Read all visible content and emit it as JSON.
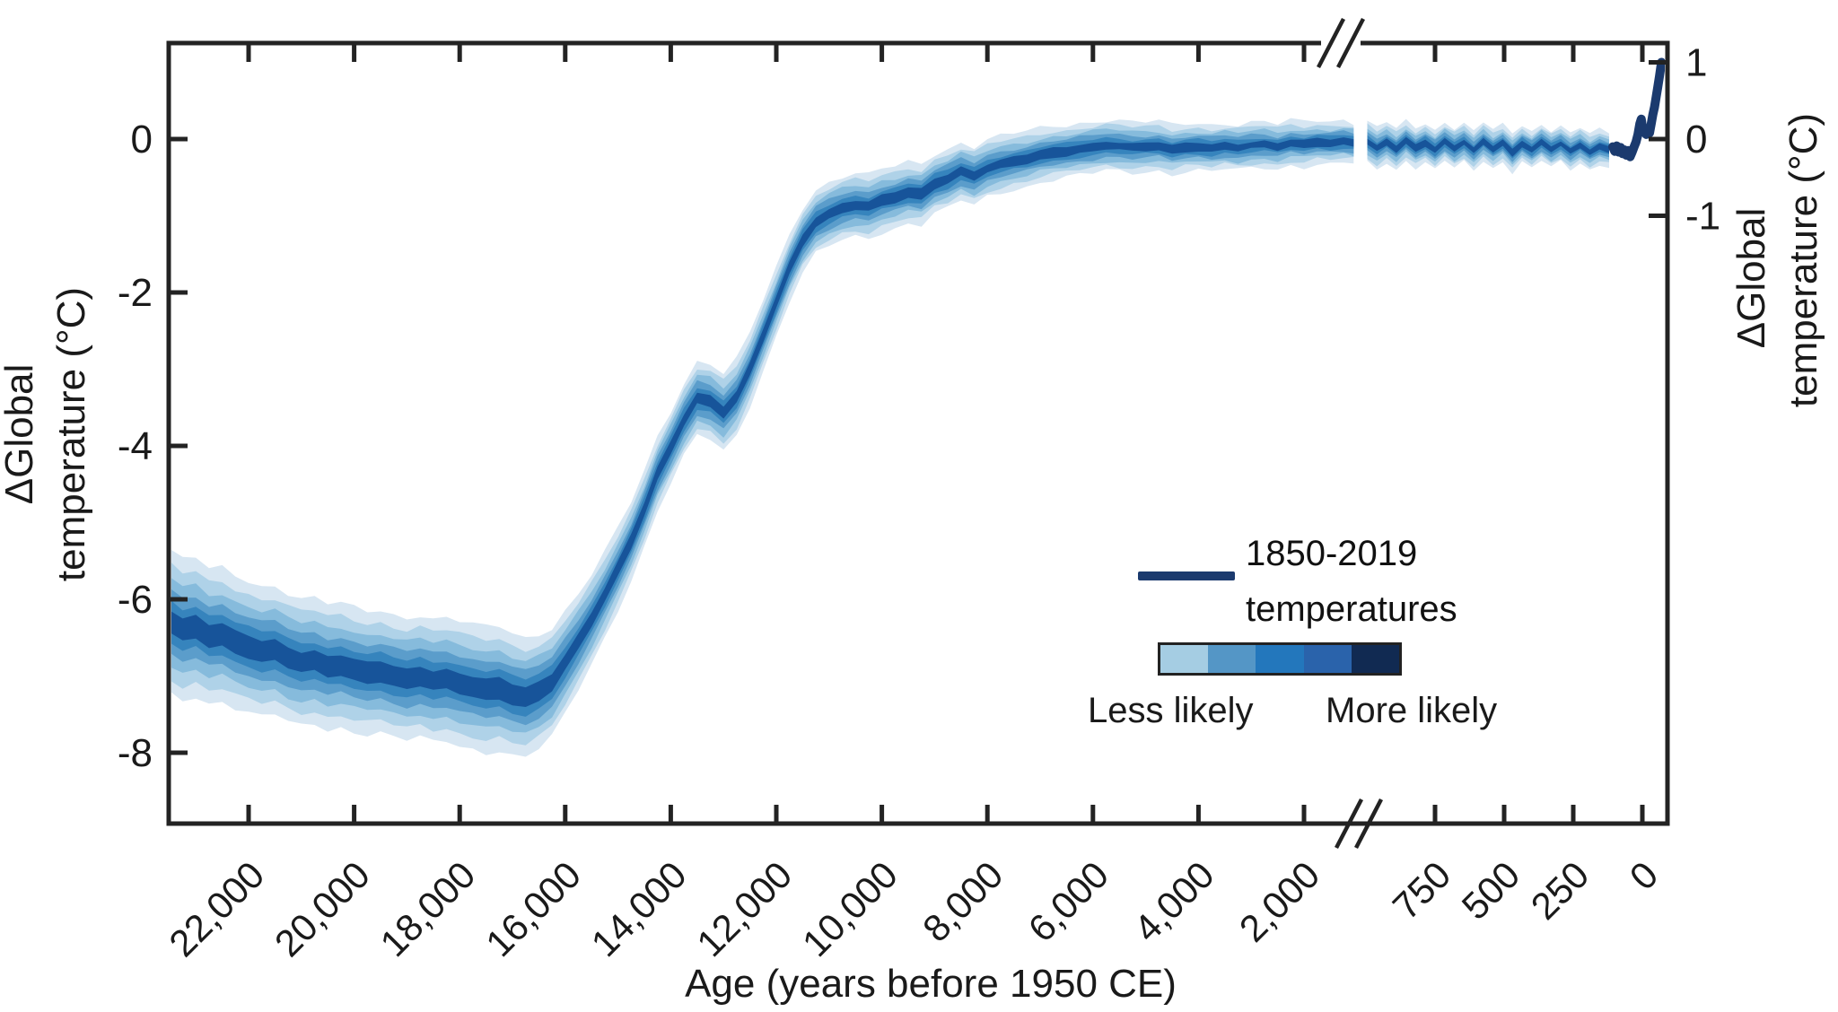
{
  "axes": {
    "x_title": "Age (years before 1950 CE)",
    "y_left_line1": "ΔGlobal",
    "y_left_line2": "temperature (°C)",
    "y_right_line1": "ΔGlobal",
    "y_right_line2": "temperature (°C)",
    "x_ticks_main": [
      {
        "label": "22,000",
        "age": 22000
      },
      {
        "label": "20,000",
        "age": 20000
      },
      {
        "label": "18,000",
        "age": 18000
      },
      {
        "label": "16,000",
        "age": 16000
      },
      {
        "label": "14,000",
        "age": 14000
      },
      {
        "label": "12,000",
        "age": 12000
      },
      {
        "label": "10,000",
        "age": 10000
      },
      {
        "label": "8,000",
        "age": 8000
      },
      {
        "label": "6,000",
        "age": 6000
      },
      {
        "label": "4,000",
        "age": 4000
      },
      {
        "label": "2,000",
        "age": 2000
      }
    ],
    "x_ticks_recent": [
      {
        "label": "750",
        "age": 750
      },
      {
        "label": "500",
        "age": 500
      },
      {
        "label": "250",
        "age": 250
      },
      {
        "label": "0",
        "age": 0
      }
    ],
    "y_ticks_left": [
      {
        "label": "0",
        "value": 0
      },
      {
        "label": "-2",
        "value": -2
      },
      {
        "label": "-4",
        "value": -4
      },
      {
        "label": "-6",
        "value": -6
      },
      {
        "label": "-8",
        "value": -8
      }
    ],
    "y_ticks_right": [
      {
        "label": "1",
        "value": 1
      },
      {
        "label": "0",
        "value": 0
      },
      {
        "label": "-1",
        "value": -1
      }
    ]
  },
  "legend": {
    "line_label_line1": "1850-2019",
    "line_label_line2": "temperatures",
    "line_color": "#1b3a6e",
    "colorbar_colors": [
      "#a5cde3",
      "#5496c6",
      "#2377bc",
      "#2a63ab",
      "#112a52"
    ],
    "less_label": "Less likely",
    "more_label": "More likely"
  },
  "colors": {
    "axis": "#232323",
    "instrumental": "#1b3a6e",
    "band_levels": [
      "#d7e6f2",
      "#afd2e8",
      "#86bbdc",
      "#5b9dcb",
      "#3684bd",
      "#17549a"
    ]
  },
  "chart_data": {
    "type": "area",
    "title": "",
    "xlabel": "Age (years before 1950 CE)",
    "ylabel_left": "ΔGlobal temperature (°C)",
    "ylabel_right": "ΔGlobal temperature (°C)",
    "ylim": [
      -8.95,
      1.25
    ],
    "x_axis_break_years_bp": [
      1450,
      1000
    ],
    "x_range_main_bp": [
      23500,
      1060
    ],
    "x_range_recent_bp": [
      995,
      -69
    ],
    "grid": false,
    "legend_entries": [
      "1850-2019 temperatures",
      "Less likely",
      "More likely"
    ],
    "band_fractions": [
      1.0,
      0.8,
      0.615,
      0.45,
      0.3,
      0.165
    ],
    "glacial_band": {
      "age_bp": [
        23500,
        23250,
        23000,
        22750,
        22500,
        22250,
        22000,
        21750,
        21500,
        21250,
        21000,
        20750,
        20500,
        20250,
        20000,
        19750,
        19500,
        19250,
        19000,
        18750,
        18500,
        18250,
        18000,
        17750,
        17500,
        17250,
        17000,
        16750,
        16500,
        16250,
        16000,
        15750,
        15500,
        15250,
        15000,
        14750,
        14500,
        14250,
        14000,
        13750,
        13500,
        13250,
        13000,
        12750,
        12500,
        12250,
        12000,
        11750,
        11500,
        11250,
        11000,
        10750,
        10500,
        10250,
        10000,
        9750,
        9500,
        9250,
        9000,
        8750,
        8500,
        8250,
        8000,
        7750,
        7500,
        7250,
        7000,
        6750,
        6500,
        6250,
        6000,
        5750,
        5500,
        5250,
        5000,
        4750,
        4500,
        4250,
        4000,
        3750,
        3500,
        3250,
        3000,
        2750,
        2500,
        2250,
        2000,
        1750,
        1500,
        1250,
        1060
      ],
      "median": [
        -6.28,
        -6.4,
        -6.36,
        -6.48,
        -6.46,
        -6.56,
        -6.62,
        -6.68,
        -6.66,
        -6.76,
        -6.82,
        -6.8,
        -6.88,
        -6.86,
        -6.92,
        -6.96,
        -6.94,
        -7.0,
        -7.04,
        -7.0,
        -7.06,
        -7.04,
        -7.1,
        -7.14,
        -7.18,
        -7.16,
        -7.24,
        -7.28,
        -7.2,
        -7.08,
        -6.82,
        -6.55,
        -6.26,
        -5.94,
        -5.6,
        -5.24,
        -4.82,
        -4.36,
        -4.02,
        -3.66,
        -3.38,
        -3.42,
        -3.56,
        -3.36,
        -3.0,
        -2.56,
        -2.12,
        -1.68,
        -1.32,
        -1.08,
        -0.98,
        -0.9,
        -0.86,
        -0.88,
        -0.8,
        -0.76,
        -0.7,
        -0.72,
        -0.58,
        -0.52,
        -0.42,
        -0.48,
        -0.38,
        -0.33,
        -0.29,
        -0.26,
        -0.21,
        -0.18,
        -0.16,
        -0.13,
        -0.11,
        -0.08,
        -0.09,
        -0.11,
        -0.1,
        -0.09,
        -0.14,
        -0.11,
        -0.1,
        -0.12,
        -0.09,
        -0.11,
        -0.08,
        -0.07,
        -0.1,
        -0.05,
        -0.07,
        -0.04,
        -0.05,
        -0.03,
        -0.05
      ],
      "half_width": [
        0.94,
        0.92,
        0.9,
        0.88,
        0.87,
        0.86,
        0.86,
        0.85,
        0.84,
        0.84,
        0.83,
        0.82,
        0.82,
        0.81,
        0.81,
        0.8,
        0.8,
        0.8,
        0.8,
        0.8,
        0.8,
        0.8,
        0.81,
        0.81,
        0.82,
        0.81,
        0.8,
        0.78,
        0.75,
        0.71,
        0.67,
        0.62,
        0.58,
        0.55,
        0.53,
        0.51,
        0.5,
        0.49,
        0.48,
        0.48,
        0.48,
        0.49,
        0.5,
        0.49,
        0.47,
        0.46,
        0.45,
        0.44,
        0.43,
        0.42,
        0.42,
        0.41,
        0.41,
        0.41,
        0.41,
        0.4,
        0.4,
        0.4,
        0.39,
        0.39,
        0.38,
        0.38,
        0.37,
        0.37,
        0.36,
        0.36,
        0.35,
        0.35,
        0.34,
        0.34,
        0.34,
        0.33,
        0.33,
        0.33,
        0.32,
        0.32,
        0.32,
        0.31,
        0.31,
        0.31,
        0.3,
        0.3,
        0.3,
        0.3,
        0.29,
        0.29,
        0.29,
        0.28,
        0.28,
        0.28,
        0.27
      ]
    },
    "millennium_band": {
      "age_bp": [
        995,
        960,
        925,
        890,
        855,
        820,
        785,
        750,
        715,
        680,
        645,
        610,
        575,
        540,
        505,
        470,
        435,
        400,
        365,
        330,
        295,
        260,
        225,
        190,
        155,
        120
      ],
      "median": [
        -0.03,
        -0.12,
        -0.04,
        -0.13,
        -0.02,
        -0.12,
        -0.05,
        -0.14,
        -0.03,
        -0.12,
        -0.04,
        -0.15,
        -0.03,
        -0.13,
        -0.05,
        -0.18,
        -0.06,
        -0.14,
        -0.04,
        -0.13,
        -0.06,
        -0.16,
        -0.08,
        -0.17,
        -0.1,
        -0.14
      ],
      "half_width": [
        0.27,
        0.27,
        0.26,
        0.27,
        0.26,
        0.26,
        0.26,
        0.26,
        0.25,
        0.26,
        0.25,
        0.25,
        0.25,
        0.25,
        0.24,
        0.26,
        0.24,
        0.24,
        0.24,
        0.24,
        0.23,
        0.24,
        0.23,
        0.23,
        0.23,
        0.22
      ]
    },
    "instrumental": {
      "year_ce": [
        1843,
        1850,
        1857,
        1864,
        1871,
        1878,
        1885,
        1892,
        1899,
        1906,
        1913,
        1920,
        1927,
        1934,
        1941,
        1946,
        1951,
        1958,
        1964,
        1970,
        1976,
        1982,
        1988,
        1994,
        2000,
        2006,
        2012,
        2019
      ],
      "anomaly": [
        -0.1,
        -0.16,
        -0.09,
        -0.17,
        -0.11,
        -0.19,
        -0.14,
        -0.21,
        -0.15,
        -0.23,
        -0.17,
        -0.1,
        -0.04,
        0.06,
        0.2,
        0.26,
        0.14,
        0.1,
        0.06,
        0.1,
        0.08,
        0.2,
        0.32,
        0.42,
        0.55,
        0.68,
        0.82,
        1.0
      ]
    }
  }
}
